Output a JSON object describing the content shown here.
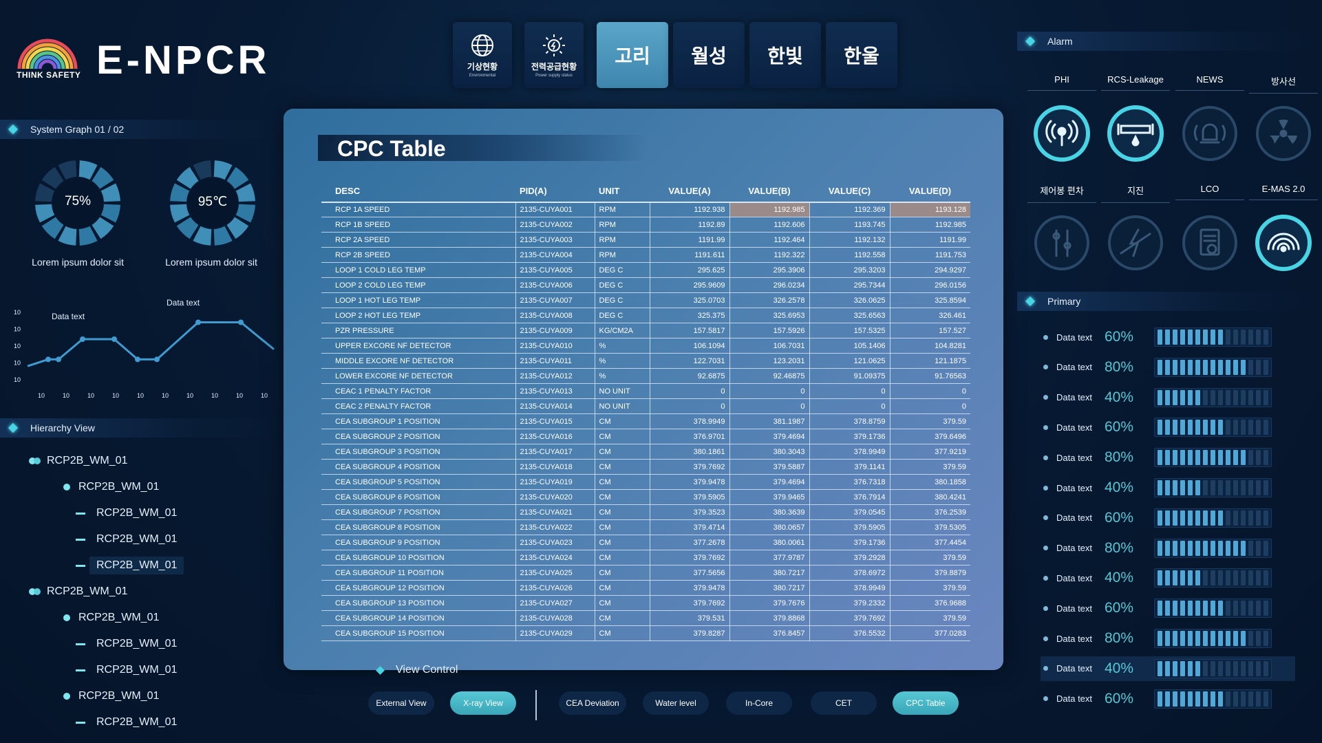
{
  "brand": {
    "tagline": "THINK SAFETY",
    "name": "E-NPCR"
  },
  "nav": {
    "small": [
      {
        "ko": "기상현황",
        "en": "Environmental"
      },
      {
        "ko": "전력공급현황",
        "en": "Power supply status"
      }
    ],
    "sites": [
      "고리",
      "월성",
      "한빛",
      "한울"
    ],
    "active_site": "고리"
  },
  "system_graph": {
    "title": "System Graph 01 / 02",
    "gauges": [
      {
        "value": "75%",
        "label": "Lorem ipsum dolor sit",
        "level": 0.75
      },
      {
        "value": "95℃",
        "label": "Lorem ipsum dolor sit",
        "level": 0.95
      }
    ],
    "chart_data": {
      "type": "line",
      "y_ticks": [
        "10",
        "10",
        "10",
        "10",
        "10"
      ],
      "x_ticks": [
        "10",
        "10",
        "10",
        "10",
        "10",
        "10",
        "10",
        "10",
        "10",
        "10"
      ],
      "annotations": [
        "Data text",
        "Data text"
      ],
      "series": [
        {
          "values": [
            10,
            20,
            20,
            50,
            50,
            20,
            20,
            75,
            75,
            35
          ]
        }
      ]
    }
  },
  "hierarchy": {
    "title": "Hierarchy View",
    "items": [
      {
        "level": 0,
        "label": "RCP2B_WM_01"
      },
      {
        "level": 1,
        "label": "RCP2B_WM_01"
      },
      {
        "level": 2,
        "label": "RCP2B_WM_01"
      },
      {
        "level": 2,
        "label": "RCP2B_WM_01"
      },
      {
        "level": 2,
        "label": "RCP2B_WM_01",
        "selected": true
      },
      {
        "level": 0,
        "label": "RCP2B_WM_01"
      },
      {
        "level": 1,
        "label": "RCP2B_WM_01"
      },
      {
        "level": 2,
        "label": "RCP2B_WM_01"
      },
      {
        "level": 2,
        "label": "RCP2B_WM_01"
      },
      {
        "level": 1,
        "label": "RCP2B_WM_01"
      },
      {
        "level": 2,
        "label": "RCP2B_WM_01"
      }
    ]
  },
  "cpc": {
    "title": "CPC Table",
    "columns": [
      "DESC",
      "PID(A)",
      "UNIT",
      "VALUE(A)",
      "VALUE(B)",
      "VALUE(C)",
      "VALUE(D)"
    ],
    "rows": [
      [
        "RCP 1A SPEED",
        "2135-CUYA001",
        "RPM",
        "1192.938",
        "1192.985",
        "1192.369",
        "1193.128"
      ],
      [
        "RCP 1B SPEED",
        "2135-CUYA002",
        "RPM",
        "1192.89",
        "1192.606",
        "1193.745",
        "1192.985"
      ],
      [
        "RCP 2A SPEED",
        "2135-CUYA003",
        "RPM",
        "1191.99",
        "1192.464",
        "1192.132",
        "1191.99"
      ],
      [
        "RCP 2B SPEED",
        "2135-CUYA004",
        "RPM",
        "1191.611",
        "1192.322",
        "1192.558",
        "1191.753"
      ],
      [
        "LOOP 1 COLD LEG TEMP",
        "2135-CUYA005",
        "DEG C",
        "295.625",
        "295.3906",
        "295.3203",
        "294.9297"
      ],
      [
        "LOOP 2 COLD LEG TEMP",
        "2135-CUYA006",
        "DEG C",
        "295.9609",
        "296.0234",
        "295.7344",
        "296.0156"
      ],
      [
        "LOOP 1 HOT LEG TEMP",
        "2135-CUYA007",
        "DEG C",
        "325.0703",
        "326.2578",
        "326.0625",
        "325.8594"
      ],
      [
        "LOOP 2 HOT LEG TEMP",
        "2135-CUYA008",
        "DEG C",
        "325.375",
        "325.6953",
        "325.6563",
        "326.461"
      ],
      [
        "PZR PRESSURE",
        "2135-CUYA009",
        "KG/CM2A",
        "157.5817",
        "157.5926",
        "157.5325",
        "157.527"
      ],
      [
        "UPPER EXCORE NF DETECTOR",
        "2135-CUYA010",
        "%",
        "106.1094",
        "106.7031",
        "105.1406",
        "104.8281"
      ],
      [
        "MIDDLE EXCORE NF DETECTOR",
        "2135-CUYA011",
        "%",
        "122.7031",
        "123.2031",
        "121.0625",
        "121.1875"
      ],
      [
        "LOWER EXCORE NF DETECTOR",
        "2135-CUYA012",
        "%",
        "92.6875",
        "92.46875",
        "91.09375",
        "91.76563"
      ],
      [
        "CEAC 1 PENALTY FACTOR",
        "2135-CUYA013",
        "NO UNIT",
        "0",
        "0",
        "0",
        "0"
      ],
      [
        "CEAC 2 PENALTY FACTOR",
        "2135-CUYA014",
        "NO UNIT",
        "0",
        "0",
        "0",
        "0"
      ],
      [
        "CEA SUBGROUP 1 POSITION",
        "2135-CUYA015",
        "CM",
        "378.9949",
        "381.1987",
        "378.8759",
        "379.59"
      ],
      [
        "CEA SUBGROUP 2 POSITION",
        "2135-CUYA016",
        "CM",
        "376.9701",
        "379.4694",
        "379.1736",
        "379.6496"
      ],
      [
        "CEA SUBGROUP 3 POSITION",
        "2135-CUYA017",
        "CM",
        "380.1861",
        "380.3043",
        "378.9949",
        "377.9219"
      ],
      [
        "CEA SUBGROUP 4 POSITION",
        "2135-CUYA018",
        "CM",
        "379.7692",
        "379.5887",
        "379.1141",
        "379.59"
      ],
      [
        "CEA SUBGROUP 5 POSITION",
        "2135-CUYA019",
        "CM",
        "379.9478",
        "379.4694",
        "376.7318",
        "380.1858"
      ],
      [
        "CEA SUBGROUP 6 POSITION",
        "2135-CUYA020",
        "CM",
        "379.5905",
        "379.9465",
        "376.7914",
        "380.4241"
      ],
      [
        "CEA SUBGROUP 7 POSITION",
        "2135-CUYA021",
        "CM",
        "379.3523",
        "380.3639",
        "379.0545",
        "376.2539"
      ],
      [
        "CEA SUBGROUP 8 POSITION",
        "2135-CUYA022",
        "CM",
        "379.4714",
        "380.0657",
        "379.5905",
        "379.5305"
      ],
      [
        "CEA SUBGROUP 9 POSITION",
        "2135-CUYA023",
        "CM",
        "377.2678",
        "380.0061",
        "379.1736",
        "377.4454"
      ],
      [
        "CEA SUBGROUP 10 POSITION",
        "2135-CUYA024",
        "CM",
        "379.7692",
        "377.9787",
        "379.2928",
        "379.59"
      ],
      [
        "CEA SUBGROUP 11 POSITION",
        "2135-CUYA025",
        "CM",
        "377.5656",
        "380.7217",
        "378.6972",
        "379.8879"
      ],
      [
        "CEA SUBGROUP 12 POSITION",
        "2135-CUYA026",
        "CM",
        "379.9478",
        "380.7217",
        "378.9949",
        "379.59"
      ],
      [
        "CEA SUBGROUP 13 POSITION",
        "2135-CUYA027",
        "CM",
        "379.7692",
        "379.7676",
        "379.2332",
        "376.9688"
      ],
      [
        "CEA SUBGROUP 14 POSITION",
        "2135-CUYA028",
        "CM",
        "379.531",
        "379.8868",
        "379.7692",
        "379.59"
      ],
      [
        "CEA SUBGROUP 15 POSITION",
        "2135-CUYA029",
        "CM",
        "379.8287",
        "376.8457",
        "376.5532",
        "377.0283"
      ]
    ]
  },
  "view_control": {
    "title": "View Control",
    "buttons": [
      "External View",
      "X-ray View",
      "CEA Deviation",
      "Water level",
      "In-Core",
      "CET",
      "CPC Table"
    ],
    "active": [
      "X-ray View",
      "CPC Table"
    ]
  },
  "alarm": {
    "title": "Alarm",
    "row1": [
      "PHI",
      "RCS-Leakage",
      "NEWS",
      "방사선"
    ],
    "row2": [
      "제어봉 편차",
      "지진",
      "LCO",
      "E-MAS 2.0"
    ],
    "icons_row1": [
      "wireless-signal-icon",
      "leakage-icon",
      "alarm-bell-icon",
      "radiation-icon"
    ],
    "icons_row2": [
      "control-rod-icon",
      "lightning-icon",
      "clipboard-check-icon",
      "signal-wave-icon"
    ],
    "active_row1": [
      true,
      true,
      false,
      false
    ],
    "active_row2": [
      false,
      false,
      false,
      true
    ],
    "accent": "#49d4e6"
  },
  "primary": {
    "title": "Primary",
    "rows": [
      {
        "label": "Data text",
        "pct": "60%",
        "level": 0.6
      },
      {
        "label": "Data text",
        "pct": "80%",
        "level": 0.8
      },
      {
        "label": "Data text",
        "pct": "40%",
        "level": 0.4
      },
      {
        "label": "Data text",
        "pct": "60%",
        "level": 0.6
      },
      {
        "label": "Data text",
        "pct": "80%",
        "level": 0.8
      },
      {
        "label": "Data text",
        "pct": "40%",
        "level": 0.4
      },
      {
        "label": "Data text",
        "pct": "60%",
        "level": 0.6
      },
      {
        "label": "Data text",
        "pct": "80%",
        "level": 0.8
      },
      {
        "label": "Data text",
        "pct": "40%",
        "level": 0.4
      },
      {
        "label": "Data text",
        "pct": "60%",
        "level": 0.6
      },
      {
        "label": "Data text",
        "pct": "80%",
        "level": 0.8
      },
      {
        "label": "Data text",
        "pct": "40%",
        "level": 0.4,
        "selected": true
      },
      {
        "label": "Data text",
        "pct": "60%",
        "level": 0.6
      }
    ]
  }
}
